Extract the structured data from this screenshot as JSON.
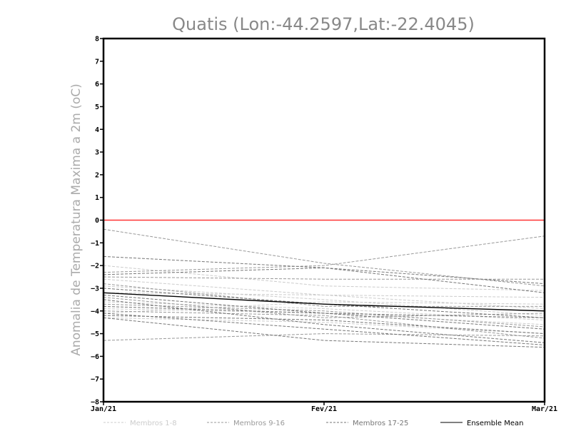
{
  "chart_data": {
    "type": "line",
    "title": "Quatis (Lon:-44.2597,Lat:-22.4045)",
    "ylabel": "Anomalia de Temperatura Maxima a 2m (oC)",
    "xlabel": "",
    "categories": [
      "Jan/21",
      "Fev/21",
      "Mar/21"
    ],
    "ylim": [
      -8,
      8
    ],
    "yticks": [
      8,
      7,
      6,
      5,
      4,
      3,
      2,
      1,
      0,
      -1,
      -2,
      -3,
      -4,
      -5,
      -6,
      -7,
      -8
    ],
    "reference_line": {
      "y": 0,
      "color": "#ff3333"
    },
    "colors": {
      "group1": "#cccccc",
      "group2": "#999999",
      "group3": "#777777",
      "mean": "#000000"
    },
    "legend": [
      {
        "label": "Membros 1-8",
        "group": "group1"
      },
      {
        "label": "Membros 9-16",
        "group": "group2"
      },
      {
        "label": "Membros 17-25",
        "group": "group3"
      },
      {
        "label": "Ensemble Mean",
        "group": "mean"
      }
    ],
    "series": [
      {
        "group": "group1",
        "values": [
          -2.0,
          -2.9,
          -3.1
        ]
      },
      {
        "group": "group1",
        "values": [
          -2.6,
          -3.3,
          -3.4
        ]
      },
      {
        "group": "group1",
        "values": [
          -2.9,
          -3.5,
          -4.2
        ]
      },
      {
        "group": "group1",
        "values": [
          -3.2,
          -3.3,
          -3.9
        ]
      },
      {
        "group": "group1",
        "values": [
          -3.6,
          -3.9,
          -4.4
        ]
      },
      {
        "group": "group1",
        "values": [
          -3.9,
          -4.1,
          -4.6
        ]
      },
      {
        "group": "group1",
        "values": [
          -4.1,
          -3.6,
          -3.7
        ]
      },
      {
        "group": "group1",
        "values": [
          -4.3,
          -4.5,
          -5.0
        ]
      },
      {
        "group": "group2",
        "values": [
          -0.4,
          -1.9,
          -2.9
        ]
      },
      {
        "group": "group2",
        "values": [
          -2.3,
          -2.0,
          -0.7
        ]
      },
      {
        "group": "group2",
        "values": [
          -2.5,
          -2.6,
          -2.6
        ]
      },
      {
        "group": "group2",
        "values": [
          -2.8,
          -3.8,
          -3.8
        ]
      },
      {
        "group": "group2",
        "values": [
          -3.4,
          -4.3,
          -4.1
        ]
      },
      {
        "group": "group2",
        "values": [
          -3.7,
          -4.0,
          -4.7
        ]
      },
      {
        "group": "group2",
        "values": [
          -4.0,
          -4.2,
          -5.2
        ]
      },
      {
        "group": "group2",
        "values": [
          -5.3,
          -5.0,
          -5.1
        ]
      },
      {
        "group": "group3",
        "values": [
          -1.6,
          -2.1,
          -3.2
        ]
      },
      {
        "group": "group3",
        "values": [
          -2.4,
          -2.1,
          -2.8
        ]
      },
      {
        "group": "group3",
        "values": [
          -3.0,
          -3.7,
          -4.3
        ]
      },
      {
        "group": "group3",
        "values": [
          -3.3,
          -4.1,
          -4.8
        ]
      },
      {
        "group": "group3",
        "values": [
          -3.5,
          -4.6,
          -5.4
        ]
      },
      {
        "group": "group3",
        "values": [
          -3.8,
          -4.1,
          -4.3
        ]
      },
      {
        "group": "group3",
        "values": [
          -4.1,
          -4.8,
          -5.5
        ]
      },
      {
        "group": "group3",
        "values": [
          -4.3,
          -5.3,
          -5.6
        ]
      },
      {
        "group": "group3",
        "values": [
          -4.2,
          -4.4,
          -5.0
        ]
      },
      {
        "group": "mean",
        "name": "Ensemble Mean",
        "values": [
          -3.2,
          -3.7,
          -4.0
        ]
      }
    ]
  }
}
